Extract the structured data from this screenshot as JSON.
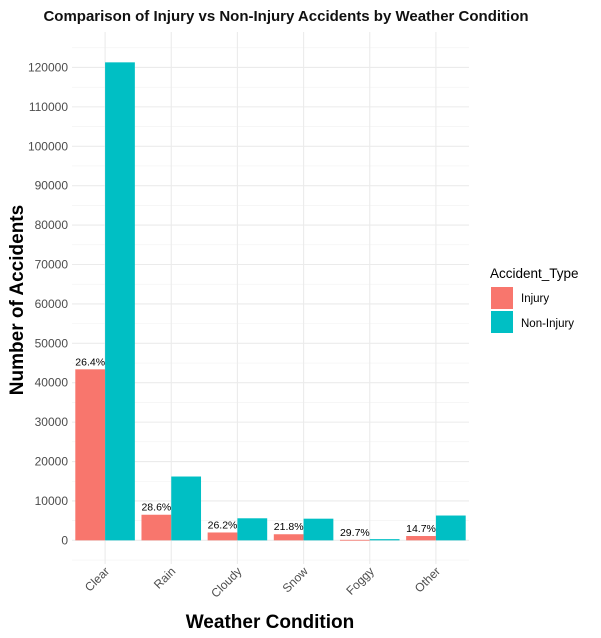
{
  "chart_data": {
    "type": "bar",
    "title": "Comparison of Injury vs Non-Injury Accidents by Weather Condition",
    "xlabel": "Weather Condition",
    "ylabel": "Number of Accidents",
    "categories": [
      "Clear",
      "Rain",
      "Cloudy",
      "Snow",
      "Foggy",
      "Other"
    ],
    "series": [
      {
        "name": "Injury",
        "color": "#F8766D",
        "values": [
          43400,
          6500,
          2000,
          1550,
          130,
          1100
        ]
      },
      {
        "name": "Non-Injury",
        "color": "#00BFC4",
        "values": [
          121300,
          16200,
          5600,
          5500,
          310,
          6300
        ]
      }
    ],
    "bar_labels": [
      "26.4%",
      "28.6%",
      "26.2%",
      "21.8%",
      "29.7%",
      "14.7%"
    ],
    "ylim": [
      -6000,
      129000
    ],
    "yticks": [
      0,
      10000,
      20000,
      30000,
      40000,
      50000,
      60000,
      70000,
      80000,
      90000,
      100000,
      110000,
      120000
    ],
    "legend": {
      "title": "Accident_Type",
      "position": "right"
    },
    "grid": true
  }
}
